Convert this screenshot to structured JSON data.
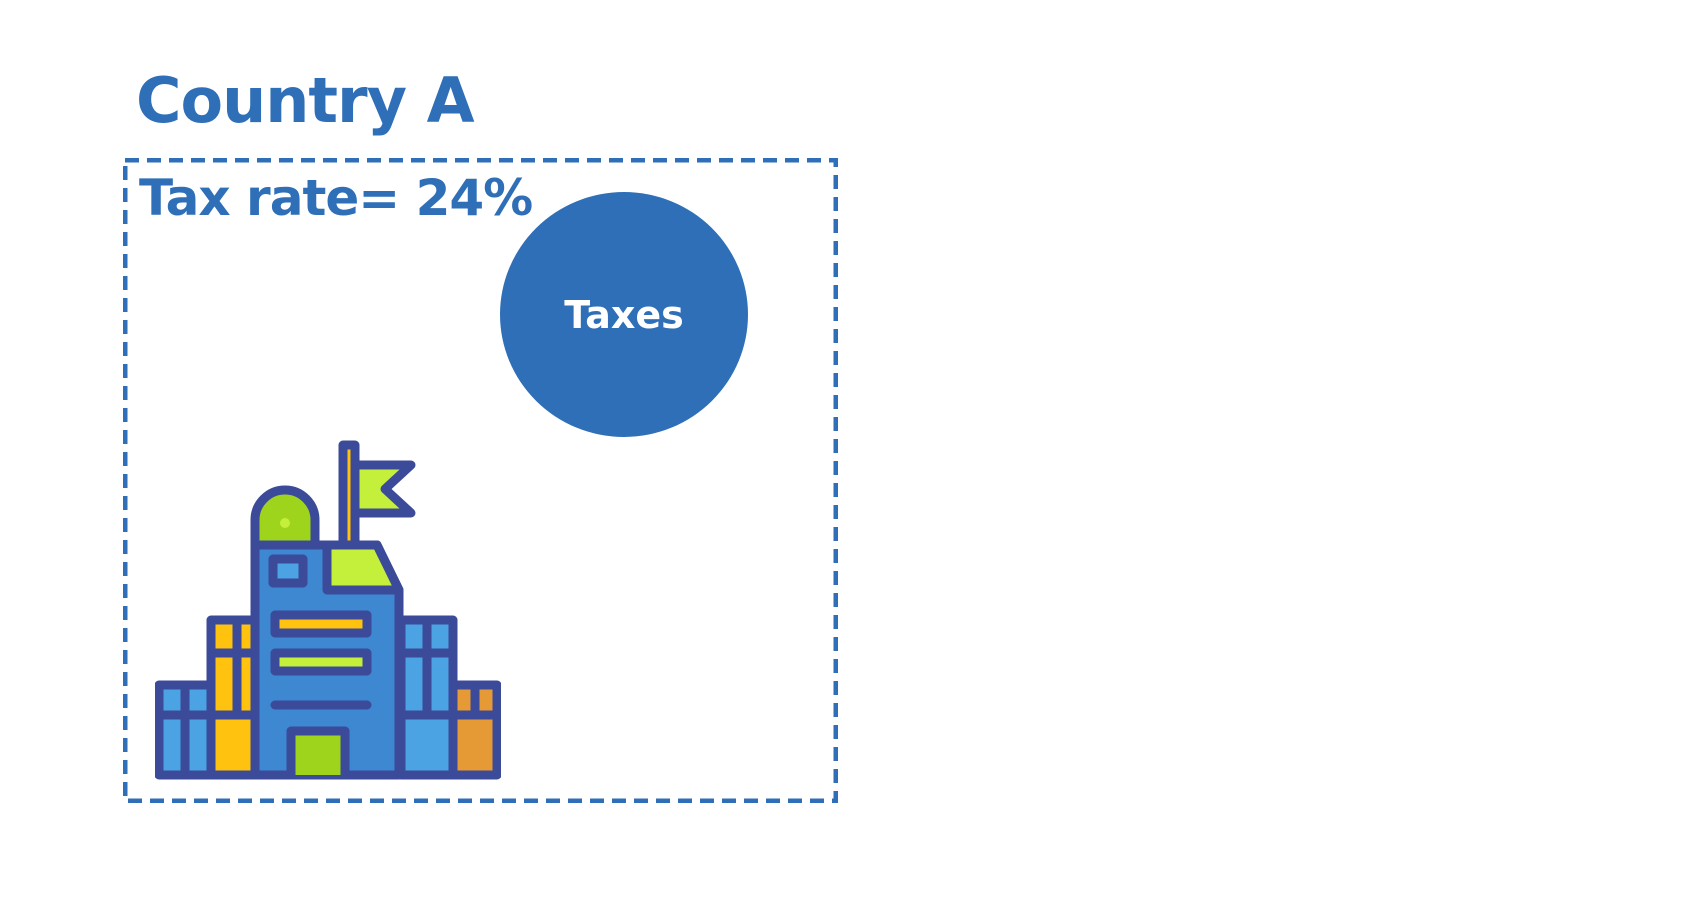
{
  "country": {
    "title": "Country A",
    "tax_rate_text": "Tax rate= 24%"
  },
  "taxes": {
    "label": "Taxes"
  },
  "colors": {
    "primary_blue": "#2E6FB7",
    "outline_navy": "#3C4A9A",
    "lime": "#C4EF3B",
    "green": "#9ED51C",
    "yellow": "#FFC20E",
    "orange": "#E59A35",
    "light_blue": "#4BA3E3",
    "mid_blue": "#3E87D1"
  },
  "icons": {
    "building": "government-building-icon"
  }
}
